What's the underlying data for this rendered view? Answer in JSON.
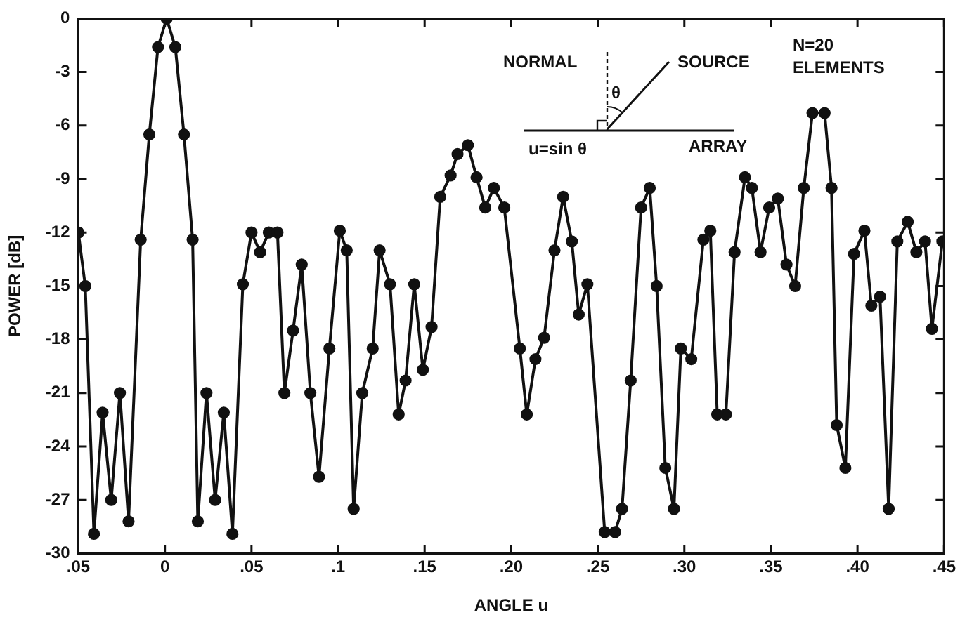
{
  "chart_data": {
    "type": "line",
    "xlabel": "ANGLE u",
    "ylabel": "POWER [dB]",
    "annotations": [
      "NORMAL",
      "SOURCE",
      "θ",
      "u=sin θ",
      "ARRAY",
      "N=20 ELEMENTS"
    ],
    "xlim": [
      -0.05,
      0.45
    ],
    "xticks": [
      {
        "value": -0.05,
        "label": ".05"
      },
      0,
      {
        "value": 0.05,
        "label": ".05"
      },
      {
        "value": 0.1,
        "label": ".1"
      },
      {
        "value": 0.15,
        "label": ".15"
      },
      {
        "value": 0.2,
        "label": ".20"
      },
      {
        "value": 0.25,
        "label": ".25"
      },
      {
        "value": 0.3,
        "label": ".30"
      },
      {
        "value": 0.35,
        "label": ".35"
      },
      {
        "value": 0.4,
        "label": ".40"
      },
      {
        "value": 0.45,
        "label": ".45"
      }
    ],
    "ylim": [
      -30,
      0
    ],
    "yticks": [
      -30,
      -27,
      -24,
      -21,
      -18,
      -15,
      -12,
      -9,
      -6,
      -3,
      0
    ],
    "grid": false,
    "legend": false,
    "marker": "circle",
    "line_style": "solid",
    "series": [
      {
        "color": "#111111",
        "x": [
          -0.05,
          -0.046,
          -0.041,
          -0.036,
          -0.031,
          -0.026,
          -0.021,
          -0.014,
          -0.009,
          -0.004,
          0.001,
          0.006,
          0.011,
          0.016,
          0.019,
          0.024,
          0.029,
          0.034,
          0.039,
          0.045,
          0.05,
          0.055,
          0.06,
          0.065,
          0.069,
          0.074,
          0.079,
          0.084,
          0.089,
          0.095,
          0.101,
          0.105,
          0.109,
          0.114,
          0.12,
          0.124,
          0.13,
          0.135,
          0.139,
          0.144,
          0.149,
          0.154,
          0.159,
          0.165,
          0.169,
          0.175,
          0.18,
          0.185,
          0.19,
          0.196,
          0.205,
          0.209,
          0.214,
          0.219,
          0.225,
          0.23,
          0.235,
          0.239,
          0.244,
          0.254,
          0.26,
          0.264,
          0.269,
          0.275,
          0.28,
          0.284,
          0.289,
          0.294,
          0.298,
          0.304,
          0.311,
          0.315,
          0.319,
          0.324,
          0.329,
          0.335,
          0.339,
          0.344,
          0.349,
          0.354,
          0.359,
          0.364,
          0.369,
          0.374,
          0.381,
          0.385,
          0.388,
          0.393,
          0.398,
          0.404,
          0.408,
          0.413,
          0.418,
          0.423,
          0.429,
          0.434,
          0.439,
          0.443,
          0.449
        ],
        "values": [
          -12,
          -15,
          -28.9,
          -22.1,
          -27,
          -21,
          -28.2,
          -12.4,
          -6.5,
          -1.6,
          0,
          -1.6,
          -6.5,
          -12.4,
          -28.2,
          -21,
          -27,
          -22.1,
          -28.9,
          -14.9,
          -12,
          -13.1,
          -12,
          -12,
          -21,
          -17.5,
          -13.8,
          -21,
          -25.7,
          -18.5,
          -11.9,
          -13,
          -27.5,
          -21,
          -18.5,
          -13,
          -14.9,
          -22.2,
          -20.3,
          -14.9,
          -19.7,
          -17.3,
          -10,
          -8.8,
          -7.6,
          -7.1,
          -8.9,
          -10.6,
          -9.5,
          -10.6,
          -18.5,
          -22.2,
          -19.1,
          -17.9,
          -13,
          -10,
          -12.5,
          -16.6,
          -14.9,
          -28.8,
          -28.8,
          -27.5,
          -20.3,
          -10.6,
          -9.5,
          -15,
          -25.2,
          -27.5,
          -18.5,
          -19.1,
          -12.4,
          -11.9,
          -22.2,
          -22.2,
          -13.1,
          -8.9,
          -9.5,
          -13.1,
          -10.6,
          -10.1,
          -13.8,
          -15,
          -9.5,
          -5.3,
          -5.3,
          -9.5,
          -22.8,
          -25.2,
          -13.2,
          -11.9,
          -16.1,
          -15.6,
          -27.5,
          -12.5,
          -11.4,
          -13.1,
          -12.5,
          -17.4,
          -12.5
        ]
      }
    ]
  }
}
